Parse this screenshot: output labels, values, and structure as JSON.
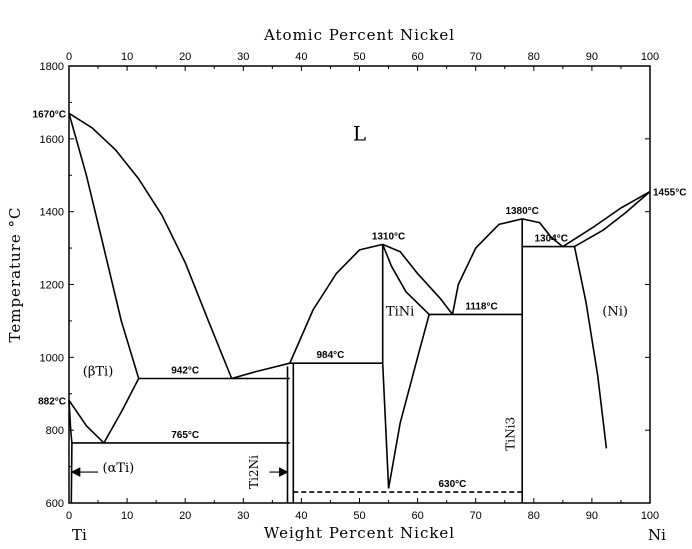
{
  "chart_data": {
    "type": "phase-diagram",
    "title": "",
    "top_axis": {
      "label": "Atomic Percent Nickel",
      "range": [
        0,
        100
      ],
      "ticks": [
        "0",
        "10",
        "20",
        "30",
        "40",
        "50",
        "60",
        "70",
        "80",
        "90",
        "100"
      ]
    },
    "x_axis": {
      "label": "Weight Percent Nickel",
      "range": [
        0,
        100
      ],
      "ticks": [
        "0",
        "10",
        "20",
        "30",
        "40",
        "50",
        "60",
        "70",
        "80",
        "90",
        "100"
      ],
      "end_labels": {
        "left": "Ti",
        "right": "Ni"
      }
    },
    "y_axis": {
      "label": "Temperature °C",
      "range": [
        600,
        1800
      ],
      "ticks": [
        "600",
        "800",
        "1000",
        "1200",
        "1400",
        "1600",
        "1800"
      ]
    },
    "phase_labels": [
      {
        "id": "liquid",
        "text": "L",
        "x": 50,
        "y": 1595
      },
      {
        "id": "beta-ti",
        "text": "(βTi)",
        "x": 5,
        "y": 950
      },
      {
        "id": "alpha-ti",
        "text": "(αTi)",
        "x": 8.5,
        "y": 685
      },
      {
        "id": "tini",
        "text": "TiNi",
        "x": 57,
        "y": 1115
      },
      {
        "id": "ni",
        "text": "(Ni)",
        "x": 94,
        "y": 1115
      }
    ],
    "compound_labels": [
      {
        "id": "ti2ni",
        "text": "Ti2Ni",
        "x": 32.5,
        "y": 685
      },
      {
        "id": "tini3",
        "text": "TiNi3",
        "x": 76.7,
        "y": 790
      }
    ],
    "temperature_annotations": [
      {
        "text": "1670°C",
        "x": 0,
        "y": 1670
      },
      {
        "text": "882°C",
        "x": 0,
        "y": 882
      },
      {
        "text": "1455°C",
        "x": 100,
        "y": 1455
      },
      {
        "text": "942°C",
        "x": 20,
        "y": 942
      },
      {
        "text": "765°C",
        "x": 20,
        "y": 765
      },
      {
        "text": "984°C",
        "x": 45,
        "y": 984
      },
      {
        "text": "1310°C",
        "x": 55,
        "y": 1310
      },
      {
        "text": "1118°C",
        "x": 71,
        "y": 1118
      },
      {
        "text": "1380°C",
        "x": 78,
        "y": 1380
      },
      {
        "text": "1304°C",
        "x": 83,
        "y": 1304
      },
      {
        "text": "630°C",
        "x": 66,
        "y": 630
      }
    ],
    "lines": [
      {
        "id": "liquidus-ti",
        "style": "solid",
        "points": [
          [
            0,
            1670
          ],
          [
            4,
            1630
          ],
          [
            8,
            1570
          ],
          [
            12,
            1490
          ],
          [
            16,
            1390
          ],
          [
            20,
            1260
          ],
          [
            24,
            1100
          ],
          [
            28,
            942
          ]
        ]
      },
      {
        "id": "solidus-beta-ti",
        "style": "solid",
        "points": [
          [
            0,
            1670
          ],
          [
            3,
            1500
          ],
          [
            6,
            1300
          ],
          [
            9,
            1100
          ],
          [
            12,
            942
          ]
        ]
      },
      {
        "id": "eutectic-942",
        "style": "solid",
        "points": [
          [
            12,
            942
          ],
          [
            38,
            942
          ]
        ]
      },
      {
        "id": "liquidus-984-left",
        "style": "solid",
        "points": [
          [
            28,
            942
          ],
          [
            32,
            960
          ],
          [
            38,
            984
          ]
        ]
      },
      {
        "id": "beta-ti-lower-left",
        "style": "solid",
        "points": [
          [
            0,
            882
          ],
          [
            3,
            812
          ],
          [
            6,
            765
          ]
        ]
      },
      {
        "id": "beta-ti-lower-right",
        "style": "solid",
        "points": [
          [
            6,
            765
          ],
          [
            9,
            850
          ],
          [
            12,
            942
          ]
        ]
      },
      {
        "id": "eutectoid-765",
        "style": "solid",
        "points": [
          [
            0.5,
            765
          ],
          [
            38,
            765
          ]
        ]
      },
      {
        "id": "alpha-ti-solvus",
        "style": "solid",
        "points": [
          [
            0,
            882
          ],
          [
            0.3,
            800
          ],
          [
            0.5,
            765
          ],
          [
            0.4,
            600
          ]
        ]
      },
      {
        "id": "ti2ni-left",
        "style": "solid",
        "points": [
          [
            37.6,
            600
          ],
          [
            37.6,
            975
          ]
        ]
      },
      {
        "id": "ti2ni-right",
        "style": "solid",
        "points": [
          [
            38.6,
            600
          ],
          [
            38.6,
            984
          ]
        ]
      },
      {
        "id": "peritectic-984",
        "style": "solid",
        "points": [
          [
            38,
            984
          ],
          [
            54,
            984
          ]
        ]
      },
      {
        "id": "liquidus-1310-left",
        "style": "solid",
        "points": [
          [
            38,
            984
          ],
          [
            42,
            1130
          ],
          [
            46,
            1230
          ],
          [
            50,
            1295
          ],
          [
            54,
            1310
          ]
        ]
      },
      {
        "id": "liquidus-1310-right",
        "style": "solid",
        "points": [
          [
            54,
            1310
          ],
          [
            57,
            1290
          ],
          [
            60,
            1230
          ],
          [
            64,
            1160
          ],
          [
            66,
            1118
          ]
        ]
      },
      {
        "id": "tini-solidus-left",
        "style": "solid",
        "points": [
          [
            54,
            1310
          ],
          [
            54,
            984
          ],
          [
            55,
            640
          ]
        ]
      },
      {
        "id": "tini-solidus-right",
        "style": "solid",
        "points": [
          [
            54,
            1310
          ],
          [
            55.5,
            1250
          ],
          [
            58,
            1180
          ],
          [
            62,
            1118
          ]
        ]
      },
      {
        "id": "tini-solvus-right",
        "style": "solid",
        "points": [
          [
            55,
            640
          ],
          [
            57,
            820
          ],
          [
            60,
            1000
          ],
          [
            62,
            1118
          ]
        ]
      },
      {
        "id": "eutectic-1118",
        "style": "solid",
        "points": [
          [
            62,
            1118
          ],
          [
            78,
            1118
          ]
        ]
      },
      {
        "id": "liquidus-1380-left",
        "style": "solid",
        "points": [
          [
            66,
            1118
          ],
          [
            67,
            1200
          ],
          [
            70,
            1300
          ],
          [
            74,
            1365
          ],
          [
            78,
            1380
          ]
        ]
      },
      {
        "id": "liquidus-1380-right",
        "style": "solid",
        "points": [
          [
            78,
            1380
          ],
          [
            81,
            1370
          ],
          [
            83,
            1330
          ],
          [
            85,
            1304
          ]
        ]
      },
      {
        "id": "tini3-compound",
        "style": "solid",
        "points": [
          [
            78,
            600
          ],
          [
            78,
            1380
          ]
        ]
      },
      {
        "id": "eutectic-1304",
        "style": "solid",
        "points": [
          [
            78,
            1304
          ],
          [
            87,
            1304
          ]
        ]
      },
      {
        "id": "liquidus-ni",
        "style": "solid",
        "points": [
          [
            85,
            1304
          ],
          [
            90,
            1355
          ],
          [
            95,
            1410
          ],
          [
            100,
            1455
          ]
        ]
      },
      {
        "id": "solidus-ni",
        "style": "solid",
        "points": [
          [
            87,
            1304
          ],
          [
            92,
            1350
          ],
          [
            96,
            1400
          ],
          [
            100,
            1455
          ]
        ]
      },
      {
        "id": "ni-solvus",
        "style": "solid",
        "points": [
          [
            87,
            1304
          ],
          [
            89,
            1150
          ],
          [
            91,
            950
          ],
          [
            92.5,
            750
          ]
        ]
      },
      {
        "id": "tini-eutectoid-630",
        "style": "dashed",
        "points": [
          [
            38.6,
            630
          ],
          [
            78,
            630
          ]
        ]
      }
    ],
    "arrows": [
      {
        "id": "alpha-ti-arrow",
        "from": [
          5,
          685
        ],
        "to": [
          0.5,
          685
        ]
      },
      {
        "id": "ti2ni-arrow",
        "from": [
          34.5,
          685
        ],
        "to": [
          37.6,
          685
        ]
      }
    ]
  }
}
